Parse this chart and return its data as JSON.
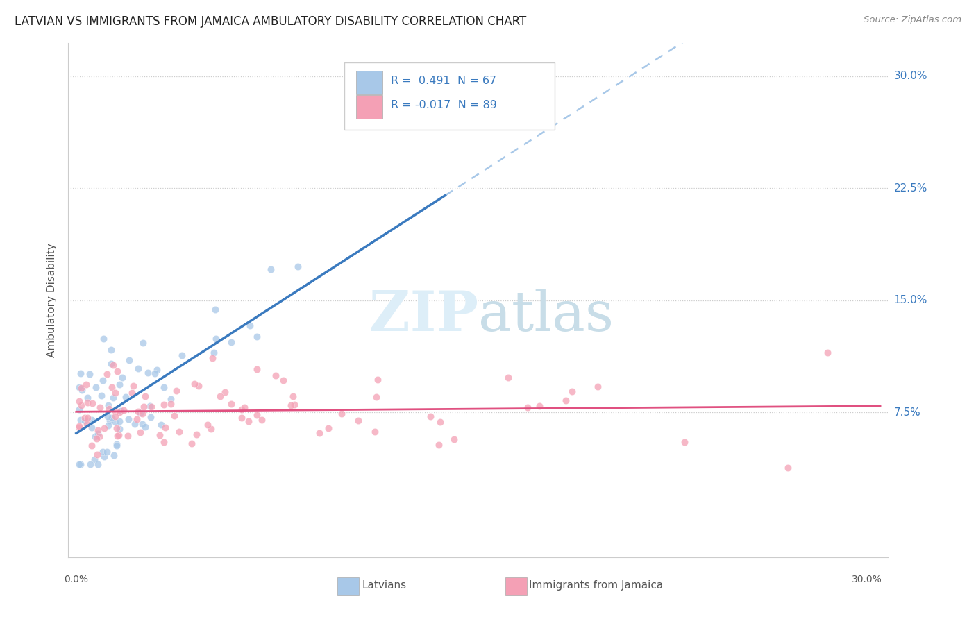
{
  "title": "LATVIAN VS IMMIGRANTS FROM JAMAICA AMBULATORY DISABILITY CORRELATION CHART",
  "source": "Source: ZipAtlas.com",
  "ylabel": "Ambulatory Disability",
  "xlabel_latvians": "Latvians",
  "xlabel_jamaica": "Immigrants from Jamaica",
  "R_latvian": 0.491,
  "N_latvian": 67,
  "R_jamaica": -0.017,
  "N_jamaica": 89,
  "latvian_color": "#a8c8e8",
  "jamaica_color": "#f4a0b5",
  "trend_latvian_solid_color": "#3a7abf",
  "trend_latvian_dashed_color": "#a8c8e8",
  "trend_jamaica_color": "#e05080",
  "watermark_color": "#ddeef8",
  "background_color": "#ffffff",
  "grid_color": "#cccccc",
  "title_color": "#222222",
  "source_color": "#888888",
  "axis_label_color": "#555555",
  "tick_label_color": "#3a7abf",
  "legend_text_color_R": "#222222",
  "legend_text_color_val": "#3a7abf"
}
